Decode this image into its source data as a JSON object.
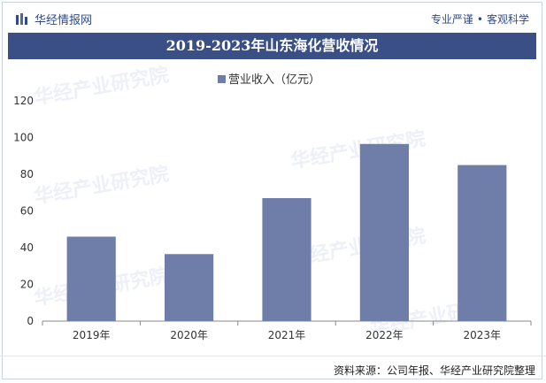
{
  "header": {
    "brand_name": "华经情报网",
    "slogan_left": "专业严谨",
    "slogan_sep": "•",
    "slogan_right": "客观科学"
  },
  "title": "2019-2023年山东海化营收情况",
  "source": "资料来源：公司年报、华经产业研究院整理",
  "watermark": "华经产业研究院",
  "colors": {
    "bar": "#6e7ea8",
    "title_bg": "#3a4f86",
    "brand": "#2f4a86",
    "axis": "#333333"
  },
  "chart_data": {
    "type": "bar",
    "categories": [
      "2019年",
      "2020年",
      "2021年",
      "2022年",
      "2023年"
    ],
    "series": [
      {
        "name": "营业收入（亿元）",
        "values": [
          46,
          36.5,
          67,
          96.5,
          85
        ]
      }
    ],
    "yticks": [
      0,
      20,
      40,
      60,
      80,
      100,
      120
    ],
    "ylim": [
      0,
      120
    ],
    "legend_position": "top-center",
    "grid": false
  }
}
